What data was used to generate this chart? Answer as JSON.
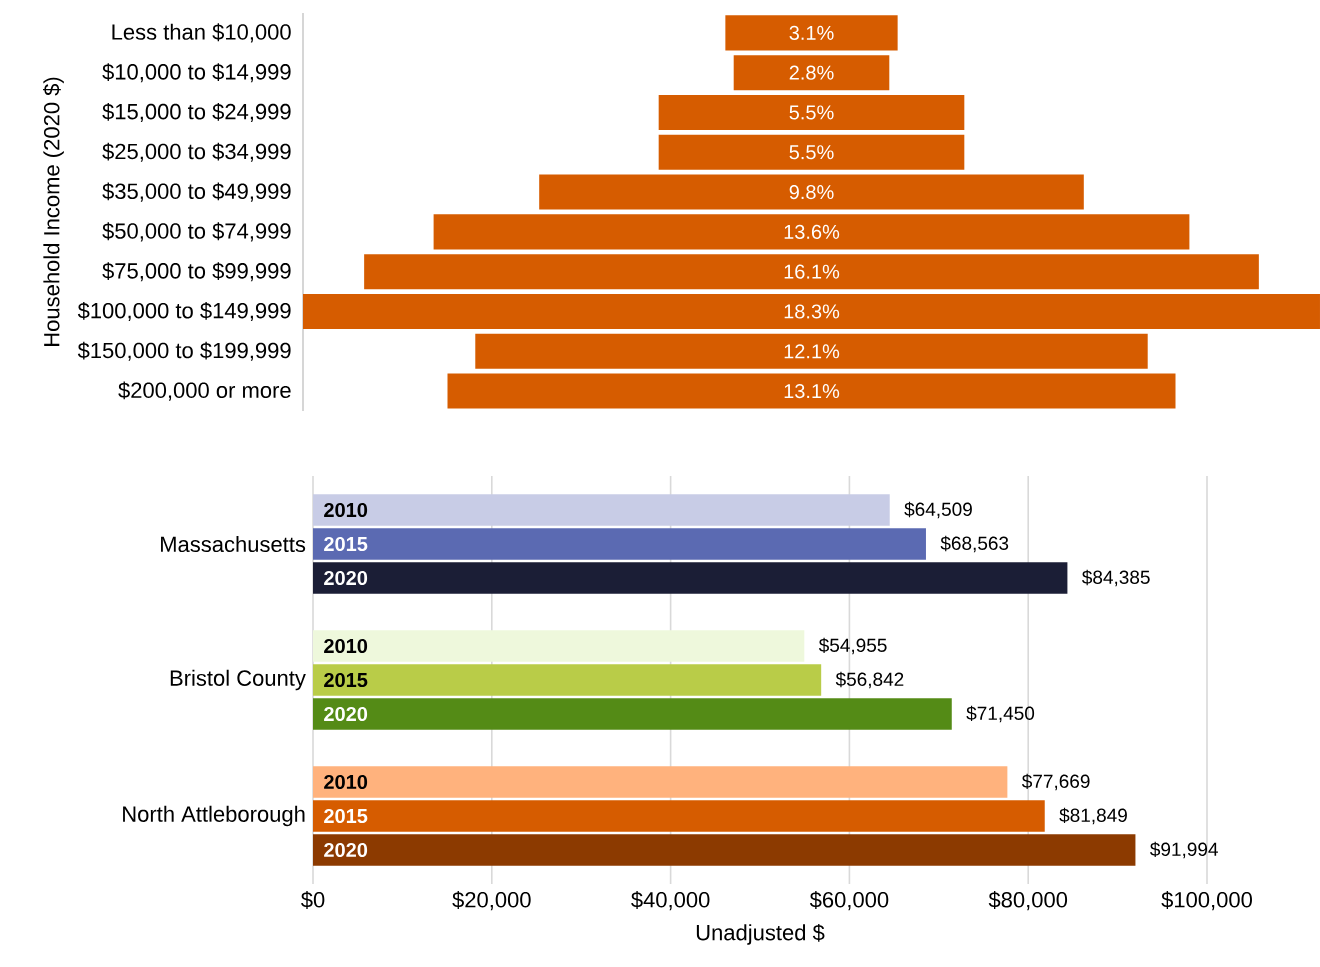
{
  "chart_data": [
    {
      "type": "other",
      "ylabel": "Household Income (2020 $)",
      "categories": [
        "Less than $10,000",
        "$10,000 to $14,999",
        "$15,000 to $24,999",
        "$25,000 to $34,999",
        "$35,000 to $49,999",
        "$50,000 to $74,999",
        "$75,000 to $99,999",
        "$100,000 to $149,999",
        "$150,000 to $199,999",
        "$200,000 or more"
      ],
      "values": [
        3.1,
        2.8,
        5.5,
        5.5,
        9.8,
        13.6,
        16.1,
        18.3,
        12.1,
        13.1
      ],
      "value_labels": [
        "3.1%",
        "2.8%",
        "5.5%",
        "5.5%",
        "9.8%",
        "13.6%",
        "16.1%",
        "18.3%",
        "12.1%",
        "13.1%"
      ],
      "color": "#d65c00"
    },
    {
      "type": "bar",
      "orientation": "horizontal",
      "xlabel": "Unadjusted $",
      "categories": [
        "Massachusetts",
        "Bristol County",
        "North Attleborough"
      ],
      "series": [
        {
          "name": "2010",
          "colors": [
            "#c8cce6",
            "#eef8dc",
            "#ffb27d"
          ],
          "values": [
            64509,
            54955,
            77669
          ],
          "value_labels": [
            "$64,509",
            "$54,955",
            "$77,669"
          ]
        },
        {
          "name": "2015",
          "colors": [
            "#5b6ab2",
            "#b9cc48",
            "#d65c00"
          ],
          "values": [
            68563,
            56842,
            81849
          ],
          "value_labels": [
            "$68,563",
            "$56,842",
            "$81,849"
          ]
        },
        {
          "name": "2020",
          "colors": [
            "#1b1e36",
            "#548b16",
            "#8c3a00"
          ],
          "values": [
            84385,
            71450,
            91994
          ],
          "value_labels": [
            "$84,385",
            "$71,450",
            "$91,994"
          ]
        }
      ],
      "xlim": [
        0,
        100000
      ],
      "xticks": [
        {
          "value": 0,
          "label": "$0"
        },
        {
          "value": 20000,
          "label": "$20,000"
        },
        {
          "value": 40000,
          "label": "$40,000"
        },
        {
          "value": 60000,
          "label": "$60,000"
        },
        {
          "value": 80000,
          "label": "$80,000"
        },
        {
          "value": 100000,
          "label": "$100,000"
        }
      ],
      "grid": "x"
    }
  ]
}
